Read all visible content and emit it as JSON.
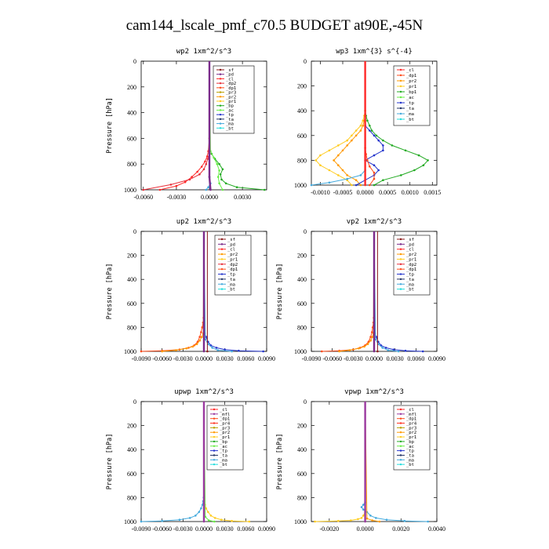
{
  "figure": {
    "title": "cam144_lscale_pmf_c70.5  BUDGET at90E,-45N"
  },
  "colors": {
    "_sf": "#8b1a1a",
    "_pd": "#7b2b8b",
    "_cl": "#ff2a2a",
    "_dp2": "#e8303a",
    "_dp1": "#ff4a1a",
    "_pr3": "#b8a000",
    "_pr2": "#ff9a00",
    "_pr1": "#ffcc22",
    "_bp": "#22aa22",
    "_bp1": "#22aa22",
    "_ac": "#66ee44",
    "_tp": "#2233cc",
    "_ta": "#223366",
    "_ma": "#44aadd",
    "_bt": "#22dddd",
    "_mfl": "#9b3aa0",
    "_pr4": "#ff3020"
  },
  "chart_data": [
    {
      "type": "line",
      "title": "wp2   1xm^2/s^3",
      "ylabel": "Pressure [hPa]",
      "xlim": [
        -0.0062,
        0.0052
      ],
      "ylim": [
        1000,
        0
      ],
      "xticks": [
        -0.006,
        -0.003,
        0,
        0.003
      ],
      "xtick_labels": [
        "-0.0060",
        "-0.0030",
        "0.0000",
        "0.0030"
      ],
      "yticks": [
        0,
        200,
        400,
        600,
        800,
        1000
      ],
      "ytick_labels": [
        "0",
        "200",
        "400",
        "600",
        "800",
        "1000"
      ],
      "legend": [
        "_sf",
        "_pd",
        "_cl",
        "_dp2",
        "_dp1",
        "_pr3",
        "_pr2",
        "_pr1",
        "_bp",
        "_ac",
        "_tp",
        "_ta",
        "_ma",
        "_bt"
      ],
      "series": [
        {
          "name": "_cl",
          "p": [
            1000,
            970,
            940,
            900,
            860,
            820,
            780,
            740,
            700,
            600,
            0
          ],
          "x": [
            -0.0045,
            -0.003,
            -0.0022,
            -0.0016,
            -0.0011,
            -0.0007,
            -0.0004,
            -0.0002,
            -0.0001,
            0,
            0
          ]
        },
        {
          "name": "_dp2",
          "p": [
            1000,
            960,
            920,
            880,
            840,
            800,
            760,
            720,
            0
          ],
          "x": [
            -0.006,
            -0.0035,
            -0.0018,
            -0.0009,
            -0.0005,
            -0.0003,
            -0.00015,
            0,
            0
          ]
        },
        {
          "name": "_bp",
          "p": [
            1000,
            980,
            950,
            920,
            880,
            840,
            800,
            760,
            720,
            680,
            0
          ],
          "x": [
            0.005,
            0.0025,
            0.0015,
            0.0011,
            0.001,
            0.0012,
            0.0009,
            0.0005,
            0.0002,
            0,
            0
          ]
        },
        {
          "name": "_ac",
          "p": [
            1000,
            950,
            900,
            850,
            800,
            750,
            700,
            0
          ],
          "x": [
            0.0012,
            0.0009,
            0.0008,
            0.0009,
            0.0007,
            0.0004,
            0.0001,
            0
          ]
        },
        {
          "name": "_ma",
          "p": [
            1000,
            980,
            950,
            900,
            0
          ],
          "x": [
            -0.0003,
            -0.0001,
            0.0001,
            0,
            0
          ]
        },
        {
          "name": "_pd",
          "p": [
            1000,
            900,
            0
          ],
          "x": [
            0.0001,
            0,
            0
          ]
        }
      ]
    },
    {
      "type": "line",
      "title": "wp3   1xm^{3} s^{-4}",
      "ylabel": "",
      "xlim": [
        -0.0012,
        0.0016
      ],
      "ylim": [
        1000,
        0
      ],
      "xticks": [
        -0.001,
        -0.0005,
        0,
        0.0005,
        0.001,
        0.0015
      ],
      "xtick_labels": [
        "-0.0010",
        "-0.0005",
        "0.0000",
        "0.0005",
        "0.0010",
        "0.0015"
      ],
      "yticks": [
        0,
        200,
        400,
        600,
        800,
        1000
      ],
      "ytick_labels": [
        "0",
        "200",
        "400",
        "600",
        "800",
        "1000"
      ],
      "legend": [
        "_cl",
        "_dp1",
        "_pr2",
        "_pr1",
        "_bp1",
        "_ac",
        "_tp",
        "_ta",
        "_ma",
        "_bt"
      ],
      "series": [
        {
          "name": "_bp1",
          "p": [
            1000,
            960,
            920,
            880,
            840,
            800,
            760,
            720,
            680,
            640,
            600,
            560,
            520,
            480,
            440,
            400,
            0
          ],
          "x": [
            0.0002,
            0.0004,
            0.0008,
            0.0011,
            0.0013,
            0.0014,
            0.0012,
            0.0009,
            0.0006,
            0.0004,
            0.00025,
            0.00015,
            0.0001,
            5e-05,
            2e-05,
            0,
            0
          ]
        },
        {
          "name": "_pr1",
          "p": [
            1000,
            960,
            920,
            880,
            840,
            800,
            760,
            720,
            680,
            640,
            600,
            560,
            520,
            480,
            440,
            400,
            0
          ],
          "x": [
            -0.0003,
            -0.0004,
            -0.0006,
            -0.0008,
            -0.001,
            -0.0011,
            -0.001,
            -0.0008,
            -0.0006,
            -0.0004,
            -0.0003,
            -0.0002,
            -0.0001,
            -5e-05,
            -2e-05,
            0,
            0
          ]
        },
        {
          "name": "_pr2",
          "p": [
            1000,
            960,
            920,
            880,
            840,
            800,
            760,
            720,
            680,
            640,
            600,
            560,
            520,
            480,
            440,
            0
          ],
          "x": [
            -0.0001,
            -0.0002,
            -0.0004,
            -0.0005,
            -0.0006,
            -0.0007,
            -0.0006,
            -0.0005,
            -0.0004,
            -0.0003,
            -0.0002,
            -0.0001,
            -5e-05,
            -2e-05,
            0,
            0
          ]
        },
        {
          "name": "_tp",
          "p": [
            1000,
            960,
            920,
            880,
            840,
            800,
            760,
            720,
            680,
            640,
            600,
            560,
            520,
            0
          ],
          "x": [
            -0.0002,
            0,
            0.0002,
            0.0003,
            0.0002,
            0,
            0.0002,
            0.0004,
            0.0004,
            0.0003,
            0.0002,
            0.0001,
            0,
            0
          ]
        },
        {
          "name": "_ma",
          "p": [
            1000,
            980,
            950,
            920,
            880,
            0
          ],
          "x": [
            -0.0012,
            -0.0008,
            -0.0004,
            -0.0001,
            0,
            0
          ]
        },
        {
          "name": "_dp1",
          "p": [
            1000,
            950,
            900,
            850,
            800,
            750,
            700,
            0
          ],
          "x": [
            0.0001,
            0.0002,
            0.0002,
            0.0001,
            5e-05,
            2e-05,
            0,
            0
          ]
        },
        {
          "name": "_cl",
          "p": [
            1000,
            0
          ],
          "x": [
            0,
            0
          ]
        }
      ]
    },
    {
      "type": "line",
      "title": "up2   1xm^2/s^3",
      "ylabel": "Pressure [hPa]",
      "xlim": [
        -0.009,
        0.009
      ],
      "ylim": [
        1000,
        0
      ],
      "xticks": [
        -0.009,
        -0.006,
        -0.003,
        0,
        0.003,
        0.006,
        0.009
      ],
      "xtick_labels": [
        "-0.0090",
        "-0.0060",
        "-0.0030",
        "0.0000",
        "0.0030",
        "0.0060",
        "0.0090"
      ],
      "yticks": [
        0,
        200,
        400,
        600,
        800,
        1000
      ],
      "ytick_labels": [
        "0",
        "200",
        "400",
        "600",
        "800",
        "1000"
      ],
      "legend": [
        "_sf",
        "_pd",
        "_cl",
        "_pr2",
        "_pr1",
        "_dp2",
        "_dp1",
        "_tp",
        "_ta",
        "_ma",
        "_bt"
      ],
      "series": [
        {
          "name": "_dp1",
          "p": [
            1000,
            995,
            985,
            970,
            950,
            920,
            880,
            840,
            800,
            760,
            720,
            0
          ],
          "x": [
            -0.009,
            -0.006,
            -0.0035,
            -0.0022,
            -0.0014,
            -0.0009,
            -0.0006,
            -0.0004,
            -0.00025,
            -0.00012,
            -5e-05,
            0
          ]
        },
        {
          "name": "_pr2",
          "p": [
            1000,
            990,
            975,
            960,
            940,
            910,
            880,
            850,
            0
          ],
          "x": [
            -0.006,
            -0.004,
            -0.0025,
            -0.0016,
            -0.001,
            -0.0006,
            -0.0003,
            -0.0001,
            0
          ]
        },
        {
          "name": "_tp",
          "p": [
            1000,
            995,
            985,
            970,
            950,
            920,
            880,
            850,
            0
          ],
          "x": [
            0.0085,
            0.005,
            0.003,
            0.0018,
            0.001,
            0.0006,
            0.0003,
            0.0001,
            0
          ]
        },
        {
          "name": "_ma",
          "p": [
            1000,
            990,
            970,
            940,
            900,
            0
          ],
          "x": [
            0.004,
            0.002,
            0.0012,
            0.0006,
            0.0002,
            0
          ]
        },
        {
          "name": "_sf",
          "p": [
            1000,
            0
          ],
          "x": [
            0.0005,
            0.0005
          ]
        },
        {
          "name": "_pd",
          "p": [
            1000,
            0
          ],
          "x": [
            0,
            0
          ]
        }
      ]
    },
    {
      "type": "line",
      "title": "vp2   1xm^2/s^3",
      "ylabel": "Pressure [hPa]",
      "xlim": [
        -0.009,
        0.009
      ],
      "ylim": [
        1000,
        0
      ],
      "xticks": [
        -0.009,
        -0.006,
        -0.003,
        0,
        0.003,
        0.006,
        0.009
      ],
      "xtick_labels": [
        "-0.0090",
        "-0.0060",
        "-0.0030",
        "0.0000",
        "0.0030",
        "0.0060",
        "0.0090"
      ],
      "yticks": [
        0,
        200,
        400,
        600,
        800,
        1000
      ],
      "ytick_labels": [
        "0",
        "200",
        "400",
        "600",
        "800",
        "1000"
      ],
      "legend": [
        "_sf",
        "_pd",
        "_cl",
        "_pr2",
        "_pr1",
        "_dp2",
        "_dp1",
        "_tp",
        "_ta",
        "_ma",
        "_bt"
      ],
      "series": [
        {
          "name": "_dp1",
          "p": [
            1000,
            995,
            985,
            970,
            950,
            920,
            880,
            840,
            800,
            760,
            720,
            0
          ],
          "x": [
            -0.0075,
            -0.005,
            -0.003,
            -0.002,
            -0.0013,
            -0.0008,
            -0.0005,
            -0.0003,
            -0.0002,
            -0.0001,
            -4e-05,
            0
          ]
        },
        {
          "name": "_pr2",
          "p": [
            1000,
            990,
            975,
            960,
            940,
            910,
            880,
            850,
            0
          ],
          "x": [
            -0.005,
            -0.0035,
            -0.0022,
            -0.0014,
            -0.0009,
            -0.0005,
            -0.00025,
            -0.0001,
            0
          ]
        },
        {
          "name": "_tp",
          "p": [
            1000,
            995,
            985,
            970,
            950,
            920,
            880,
            850,
            0
          ],
          "x": [
            0.007,
            0.0045,
            0.0028,
            0.0017,
            0.001,
            0.0006,
            0.0003,
            0.0001,
            0
          ]
        },
        {
          "name": "_ma",
          "p": [
            1000,
            990,
            970,
            940,
            900,
            0
          ],
          "x": [
            0.0035,
            0.002,
            0.0012,
            0.0006,
            0.0002,
            0
          ]
        },
        {
          "name": "_sf",
          "p": [
            1000,
            0
          ],
          "x": [
            0.0005,
            0.0005
          ]
        },
        {
          "name": "_pd",
          "p": [
            1000,
            0
          ],
          "x": [
            0,
            0
          ]
        }
      ]
    },
    {
      "type": "line",
      "title": "upwp   1xm^2/s^3",
      "ylabel": "Pressure [hPa]",
      "xlim": [
        -0.009,
        0.009
      ],
      "ylim": [
        1000,
        0
      ],
      "xticks": [
        -0.009,
        -0.006,
        -0.003,
        0,
        0.003,
        0.006,
        0.009
      ],
      "xtick_labels": [
        "-0.0090",
        "-0.0060",
        "-0.0030",
        "0.0000",
        "0.0030",
        "0.0060",
        "0.0090"
      ],
      "yticks": [
        0,
        200,
        400,
        600,
        800,
        1000
      ],
      "ytick_labels": [
        "0",
        "200",
        "400",
        "600",
        "800",
        "1000"
      ],
      "legend": [
        "_cl",
        "_mfl",
        "_dp1",
        "_pr4",
        "_pr3",
        "_pr2",
        "_pr1",
        "_bp",
        "_ac",
        "_tp",
        "_ta",
        "_ma",
        "_bt"
      ],
      "series": [
        {
          "name": "_ma",
          "p": [
            1000,
            995,
            985,
            970,
            950,
            920,
            890,
            860,
            830,
            800,
            0
          ],
          "x": [
            -0.009,
            -0.006,
            -0.0035,
            -0.002,
            -0.0012,
            -0.0007,
            -0.0004,
            -0.0002,
            -0.0001,
            -3e-05,
            0
          ]
        },
        {
          "name": "_pr1",
          "p": [
            1000,
            995,
            985,
            970,
            950,
            920,
            890,
            860,
            830,
            0
          ],
          "x": [
            0.0065,
            0.004,
            0.0025,
            0.0016,
            0.001,
            0.0006,
            0.0003,
            0.00015,
            5e-05,
            0
          ]
        },
        {
          "name": "_ac",
          "p": [
            1000,
            990,
            960,
            0
          ],
          "x": [
            0.0015,
            0.0007,
            0.0002,
            0
          ]
        },
        {
          "name": "_mfl",
          "p": [
            1000,
            0
          ],
          "x": [
            0,
            0
          ]
        }
      ]
    },
    {
      "type": "line",
      "title": "vpwp   1xm^2/s^3",
      "ylabel": "Pressure [hPa]",
      "xlim": [
        -0.003,
        0.004
      ],
      "ylim": [
        1000,
        0
      ],
      "xticks": [
        -0.002,
        0,
        0.002,
        0.004
      ],
      "xtick_labels": [
        "-0.0020",
        "0.0000",
        "0.0020",
        "0.0040"
      ],
      "yticks": [
        0,
        200,
        400,
        600,
        800,
        1000
      ],
      "ytick_labels": [
        "0",
        "200",
        "400",
        "600",
        "800",
        "1000"
      ],
      "legend": [
        "_cl",
        "_mfl",
        "_dp1",
        "_pr4",
        "_pr3",
        "_pr2",
        "_pr1",
        "_bp",
        "_ac",
        "_tp",
        "_ta",
        "_ma",
        "_bt"
      ],
      "series": [
        {
          "name": "_pr1",
          "p": [
            1000,
            995,
            990,
            980,
            970,
            950,
            920,
            900,
            0
          ],
          "x": [
            -0.0028,
            -0.0015,
            -0.0008,
            -0.0004,
            -0.0002,
            -0.0001,
            0,
            0,
            0
          ]
        },
        {
          "name": "_ma",
          "p": [
            1000,
            995,
            985,
            970,
            950,
            920,
            900,
            880,
            860,
            840,
            0
          ],
          "x": [
            0.0035,
            0.0022,
            0.0012,
            0.0006,
            0.0003,
            0.0001,
            -0.0001,
            -0.0002,
            -0.0001,
            0,
            0
          ]
        },
        {
          "name": "_pr2",
          "p": [
            1000,
            990,
            975,
            0
          ],
          "x": [
            0.0008,
            0.0004,
            0.0001,
            0
          ]
        },
        {
          "name": "_mfl",
          "p": [
            1000,
            0
          ],
          "x": [
            0,
            0
          ]
        }
      ]
    }
  ]
}
